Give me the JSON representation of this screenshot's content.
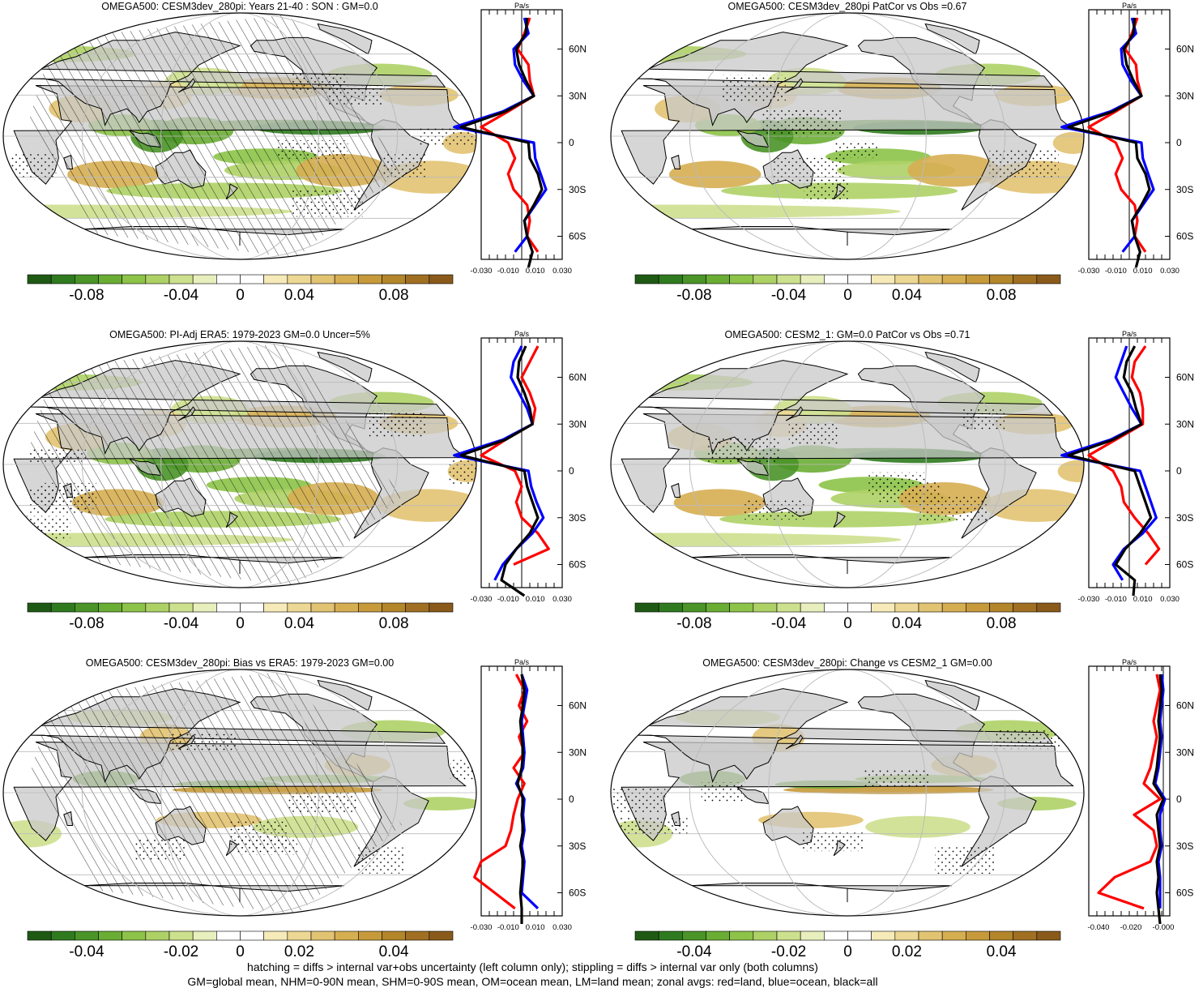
{
  "palette": {
    "diverging": [
      "#1f5a14",
      "#2f7a1f",
      "#4a9428",
      "#6aad34",
      "#8cc348",
      "#aed166",
      "#cde08e",
      "#e8efbd",
      "#ffffff",
      "#ffffff",
      "#f6eab8",
      "#ecd894",
      "#e2c372",
      "#d6ae52",
      "#c69a3b",
      "#b3862b",
      "#a06f22",
      "#8a5a1a"
    ],
    "land": "#c8c8c8",
    "land_line": "red",
    "ocean_line": "blue",
    "all_line": "black"
  },
  "zonal_axis": {
    "unit": "Pa/s",
    "lat_ticks": [
      "60N",
      "30N",
      "0",
      "30S",
      "60S"
    ],
    "lat_values": [
      60,
      30,
      0,
      -30,
      -60
    ]
  },
  "panels": [
    {
      "title": "OMEGA500: CESM3dev_280pi: Years 21-40 : SON : GM=0.0",
      "colorbar_labels": [
        "-0.08",
        "-0.04",
        "0",
        "0.04",
        "0.08"
      ],
      "zonal_xticks": [
        "-0.030",
        "-0.010",
        "0.010",
        "0.030"
      ]
    },
    {
      "title": "OMEGA500: CESM3dev_280pi PatCor vs Obs =0.67",
      "colorbar_labels": [
        "-0.08",
        "-0.04",
        "0",
        "0.04",
        "0.08"
      ],
      "zonal_xticks": [
        "-0.030",
        "-0.010",
        "0.010",
        "0.030"
      ]
    },
    {
      "title": "OMEGA500: PI-Adj ERA5: 1979-2023 GM=0.0 Uncer=5%",
      "colorbar_labels": [
        "-0.08",
        "-0.04",
        "0",
        "0.04",
        "0.08"
      ],
      "zonal_xticks": [
        "-0.030",
        "-0.010",
        "0.010",
        "0.030"
      ]
    },
    {
      "title": "OMEGA500: CESM2_1: GM=0.0 PatCor vs Obs =0.71",
      "colorbar_labels": [
        "-0.08",
        "-0.04",
        "0",
        "0.04",
        "0.08"
      ],
      "zonal_xticks": [
        "-0.030",
        "-0.010",
        "0.010",
        "0.030"
      ]
    },
    {
      "title": "OMEGA500: CESM3dev_280pi: Bias vs ERA5: 1979-2023  GM=0.00",
      "colorbar_labels": [
        "-0.04",
        "-0.02",
        "0",
        "0.02",
        "0.04"
      ],
      "zonal_xticks": [
        "-0.030",
        "-0.010",
        "0.010",
        "0.030"
      ]
    },
    {
      "title": "OMEGA500: CESM3dev_280pi: Change vs CESM2_1 GM=0.00",
      "colorbar_labels": [
        "-0.04",
        "-0.02",
        "0",
        "0.02",
        "0.04"
      ],
      "zonal_xticks": [
        "-0.040",
        "-0.020",
        "-0.000"
      ]
    }
  ],
  "footer": {
    "line1": "hatching = diffs > internal var+obs uncertainty (left column only); stippling = diffs > internal var only (both columns)",
    "line2": "GM=global mean, NHM=0-90N mean, SHM=0-90S mean, OM=ocean mean, LM=land mean; zonal avgs: red=land, blue=ocean, black=all"
  },
  "chart_data": [
    {
      "type": "heatmap",
      "title": "OMEGA500: CESM3dev_280pi: Years 21-40 : SON : GM=0.0",
      "projection": "Robinson",
      "colorbar": {
        "range": [
          -0.1,
          0.1
        ],
        "ticks": [
          -0.08,
          -0.04,
          0,
          0.04,
          0.08
        ]
      },
      "zonal_mean": {
        "xlim": [
          -0.03,
          0.03
        ],
        "xticks": [
          -0.03,
          -0.01,
          0.01,
          0.03
        ],
        "unit": "Pa/s",
        "lat": [
          80,
          70,
          60,
          50,
          40,
          30,
          20,
          10,
          0,
          -10,
          -20,
          -30,
          -40,
          -50,
          -60,
          -70,
          -80
        ],
        "all": [
          0.004,
          0.003,
          -0.004,
          -0.002,
          0.003,
          0.009,
          -0.012,
          -0.045,
          0.005,
          0.006,
          0.012,
          0.015,
          0.009,
          0.002,
          0.004,
          0.008,
          0.005
        ],
        "land": [
          0.006,
          0.002,
          -0.003,
          0.005,
          0.006,
          0.009,
          -0.01,
          -0.03,
          -0.01,
          -0.005,
          -0.01,
          -0.006,
          0.004,
          0.006,
          0.004,
          0.012,
          null
        ],
        "ocean": [
          0.002,
          0.005,
          -0.006,
          -0.005,
          0.001,
          0.009,
          -0.014,
          -0.05,
          0.009,
          0.01,
          0.014,
          0.018,
          0.01,
          0.002,
          0.004,
          -0.005,
          null
        ]
      }
    },
    {
      "type": "heatmap",
      "title": "OMEGA500: CESM3dev_280pi PatCor vs Obs =0.67",
      "projection": "Robinson",
      "colorbar": {
        "range": [
          -0.1,
          0.1
        ],
        "ticks": [
          -0.08,
          -0.04,
          0,
          0.04,
          0.08
        ]
      },
      "zonal_mean": {
        "xlim": [
          -0.03,
          0.03
        ],
        "xticks": [
          -0.03,
          -0.01,
          0.01,
          0.03
        ],
        "unit": "Pa/s",
        "lat": [
          80,
          70,
          60,
          50,
          40,
          30,
          20,
          10,
          0,
          -10,
          -20,
          -30,
          -40,
          -50,
          -60,
          -70,
          -80
        ],
        "all": [
          0.004,
          0.003,
          -0.004,
          -0.002,
          0.003,
          0.009,
          -0.012,
          -0.045,
          0.005,
          0.006,
          0.012,
          0.015,
          0.009,
          0.002,
          0.004,
          0.008,
          0.005
        ],
        "land": [
          0.006,
          0.002,
          -0.003,
          0.005,
          0.006,
          0.009,
          -0.01,
          -0.03,
          -0.01,
          -0.005,
          -0.01,
          -0.006,
          0.004,
          0.006,
          0.004,
          0.012,
          null
        ],
        "ocean": [
          0.002,
          0.005,
          -0.006,
          -0.005,
          0.001,
          0.009,
          -0.014,
          -0.05,
          0.009,
          0.01,
          0.014,
          0.018,
          0.01,
          0.002,
          0.004,
          -0.005,
          null
        ]
      }
    },
    {
      "type": "heatmap",
      "title": "OMEGA500: PI-Adj ERA5: 1979-2023 GM=0.0 Uncer=5%",
      "projection": "Robinson",
      "colorbar": {
        "range": [
          -0.1,
          0.1
        ],
        "ticks": [
          -0.08,
          -0.04,
          0,
          0.04,
          0.08
        ]
      },
      "zonal_mean": {
        "xlim": [
          -0.03,
          0.03
        ],
        "xticks": [
          -0.03,
          -0.01,
          0.01,
          0.03
        ],
        "unit": "Pa/s",
        "lat": [
          80,
          70,
          60,
          50,
          40,
          30,
          20,
          10,
          0,
          -10,
          -20,
          -30,
          -40,
          -50,
          -60,
          -70,
          -80
        ],
        "all": [
          0.003,
          -0.002,
          -0.003,
          0.002,
          0.006,
          0.008,
          -0.012,
          -0.045,
          0.002,
          0.004,
          0.008,
          0.012,
          0.006,
          -0.004,
          -0.012,
          -0.015,
          0.002
        ],
        "land": [
          0.012,
          0.006,
          0.0,
          0.006,
          0.01,
          0.008,
          -0.012,
          -0.03,
          -0.005,
          0.0,
          -0.004,
          0.0,
          0.012,
          0.02,
          -0.006,
          null,
          null
        ],
        "ocean": [
          0.0,
          -0.006,
          -0.008,
          -0.002,
          0.004,
          0.008,
          -0.014,
          -0.05,
          0.005,
          0.007,
          0.011,
          0.016,
          0.008,
          -0.004,
          -0.014,
          -0.02,
          null
        ]
      }
    },
    {
      "type": "heatmap",
      "title": "OMEGA500: CESM2_1: GM=0.0 PatCor vs Obs =0.71",
      "projection": "Robinson",
      "colorbar": {
        "range": [
          -0.1,
          0.1
        ],
        "ticks": [
          -0.08,
          -0.04,
          0,
          0.04,
          0.08
        ]
      },
      "zonal_mean": {
        "xlim": [
          -0.03,
          0.03
        ],
        "xticks": [
          -0.03,
          -0.01,
          0.01,
          0.03
        ],
        "unit": "Pa/s",
        "lat": [
          80,
          70,
          60,
          50,
          40,
          30,
          20,
          10,
          0,
          -10,
          -20,
          -30,
          -40,
          -50,
          -60,
          -70,
          -80
        ],
        "all": [
          0.004,
          -0.002,
          -0.004,
          0.002,
          0.005,
          0.009,
          -0.012,
          -0.045,
          0.004,
          0.008,
          0.012,
          0.016,
          0.008,
          -0.003,
          -0.01,
          0.004,
          0.003
        ],
        "land": [
          0.012,
          0.004,
          0.002,
          0.008,
          0.01,
          0.01,
          -0.01,
          -0.03,
          -0.012,
          -0.006,
          -0.004,
          0.004,
          0.014,
          0.022,
          0.012,
          null,
          null
        ],
        "ocean": [
          -0.002,
          -0.006,
          -0.01,
          -0.004,
          0.002,
          0.009,
          -0.014,
          -0.05,
          0.008,
          0.012,
          0.016,
          0.02,
          0.01,
          -0.004,
          -0.012,
          -0.005,
          null
        ]
      }
    },
    {
      "type": "heatmap",
      "title": "OMEGA500: CESM3dev_280pi: Bias vs ERA5: 1979-2023  GM=0.00",
      "projection": "Robinson",
      "colorbar": {
        "range": [
          -0.05,
          0.05
        ],
        "ticks": [
          -0.04,
          -0.02,
          0,
          0.02,
          0.04
        ]
      },
      "zonal_mean": {
        "xlim": [
          -0.03,
          0.03
        ],
        "xticks": [
          -0.03,
          -0.01,
          0.01,
          0.03
        ],
        "unit": "Pa/s",
        "lat": [
          80,
          70,
          60,
          50,
          40,
          30,
          20,
          10,
          0,
          -10,
          -20,
          -30,
          -40,
          -50,
          -60,
          -70,
          -80
        ],
        "all": [
          0.0,
          0.002,
          0.001,
          -0.001,
          0.0,
          0.001,
          0.0,
          -0.003,
          0.001,
          0.0,
          0.001,
          -0.001,
          0.001,
          0.0,
          -0.001,
          0.0,
          0.0
        ],
        "land": [
          -0.004,
          0.002,
          -0.002,
          0.004,
          -0.002,
          0.002,
          -0.006,
          0.002,
          -0.003,
          -0.006,
          -0.008,
          -0.012,
          -0.03,
          -0.035,
          -0.02,
          -0.005,
          null
        ],
        "ocean": [
          0.0,
          0.004,
          0.002,
          0.0,
          0.001,
          0.002,
          0.001,
          -0.004,
          0.002,
          0.001,
          0.002,
          0.0,
          0.002,
          0.001,
          0.0,
          0.012,
          null
        ]
      }
    },
    {
      "type": "heatmap",
      "title": "OMEGA500: CESM3dev_280pi: Change vs CESM2_1 GM=0.00",
      "projection": "Robinson",
      "colorbar": {
        "range": [
          -0.05,
          0.05
        ],
        "ticks": [
          -0.04,
          -0.02,
          0,
          0.02,
          0.04
        ]
      },
      "zonal_mean": {
        "xlim": [
          -0.046,
          0.004
        ],
        "xticks": [
          -0.04,
          -0.02,
          0.0
        ],
        "unit": "Pa/s",
        "lat": [
          80,
          70,
          60,
          50,
          40,
          30,
          20,
          10,
          0,
          -10,
          -20,
          -30,
          -40,
          -50,
          -60,
          -70,
          -80
        ],
        "all": [
          -0.002,
          -0.001,
          -0.002,
          -0.003,
          -0.002,
          -0.003,
          -0.004,
          -0.006,
          0.0,
          -0.004,
          -0.003,
          -0.002,
          -0.004,
          -0.003,
          -0.004,
          -0.003,
          -0.002
        ],
        "land": [
          -0.004,
          -0.002,
          -0.004,
          -0.006,
          -0.004,
          -0.006,
          -0.008,
          -0.012,
          -0.002,
          -0.018,
          -0.006,
          -0.004,
          -0.008,
          -0.03,
          -0.04,
          -0.012,
          null
        ],
        "ocean": [
          -0.001,
          0.0,
          -0.001,
          -0.002,
          -0.001,
          -0.002,
          -0.003,
          -0.005,
          0.001,
          -0.002,
          -0.002,
          -0.001,
          -0.003,
          -0.002,
          -0.002,
          -0.002,
          null
        ]
      }
    }
  ]
}
